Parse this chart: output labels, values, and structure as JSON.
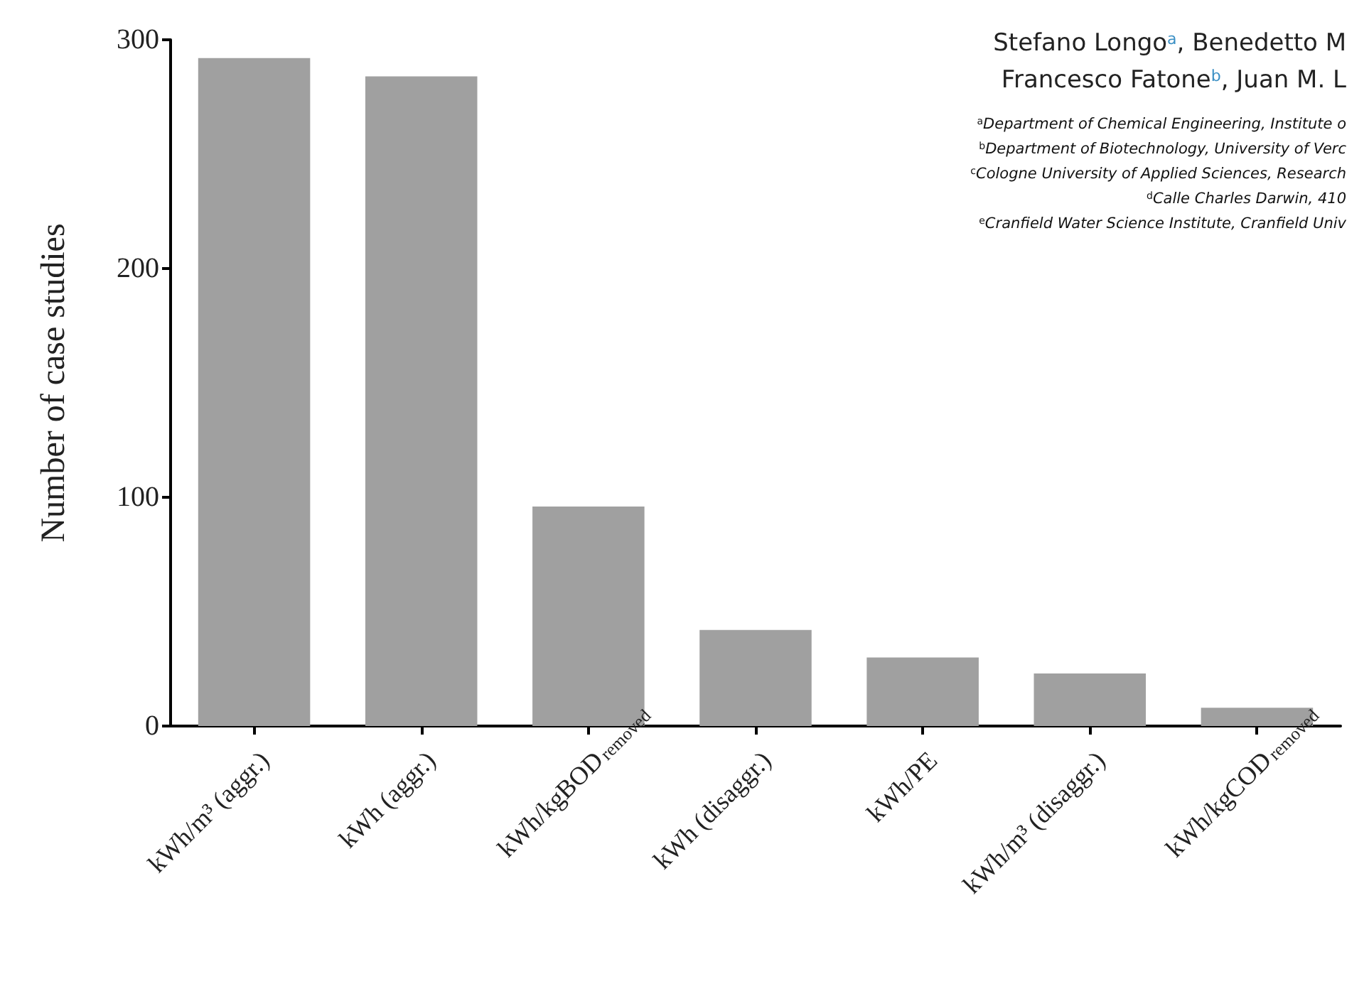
{
  "chart_data": {
    "type": "bar",
    "ylabel": "Number of case studies",
    "categories": [
      "kWh/m³ (aggr.)",
      "kWh (aggr.)",
      "kWh/kgBOD$_{removed}$",
      "kWh (disaggr.)",
      "kWh/PE",
      "kWh/m³ (disaggr.)",
      "kWh/kgCOD$_{removed}$"
    ],
    "values": [
      292,
      284,
      96,
      42,
      30,
      23,
      8
    ],
    "color": "#a0a0a0",
    "ylim": [
      0,
      300
    ],
    "yticks": [
      0,
      100,
      200,
      300
    ],
    "grid": false,
    "annotations": [
      "Stefano Longo$^{a}$, Benedetto M",
      "Francesco Fatone$^{b}$, Juan M. L",
      "$^{a}$Department of Chemical Engineering, Institute o",
      "$^{b}$Department of Biotechnology, University of Verc",
      "$^{c}$Cologne University of Applied Sciences, Research",
      "$^{d}$Calle Charles Darwin, 410",
      "$^{e}$Cranfield Water Science Institute, Cranfield Univ"
    ]
  }
}
